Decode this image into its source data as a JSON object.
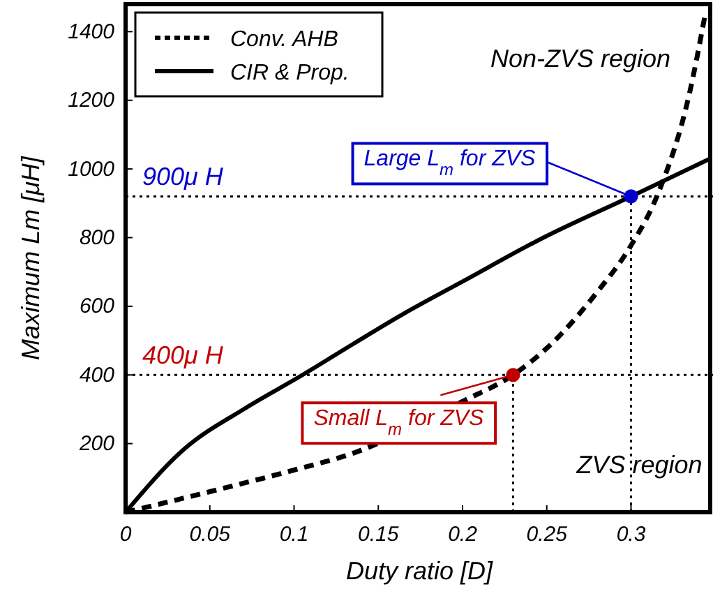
{
  "chart_data": {
    "type": "line",
    "xlabel": "Duty ratio [D]",
    "ylabel": "Maximum Lm [μH]",
    "xlim": [
      0,
      0.347
    ],
    "ylim": [
      0,
      1480
    ],
    "xticks": [
      0,
      0.05,
      0.1,
      0.15,
      0.2,
      0.25,
      0.3
    ],
    "yticks": [
      {
        "value": 0,
        "label": null
      },
      200,
      400,
      600,
      800,
      1000,
      1200,
      1400
    ],
    "grid": false,
    "legend": "top left",
    "series": [
      {
        "name": "Conv. AHB",
        "color": "#000000",
        "line_style": "dashed",
        "x": [
          0,
          0.05,
          0.1,
          0.135,
          0.2,
          0.23,
          0.25,
          0.28,
          0.3,
          0.316,
          0.335,
          0.344
        ],
        "values": [
          0,
          60,
          123,
          172,
          323,
          400,
          478,
          642,
          777,
          928,
          1227,
          1450
        ]
      },
      {
        "name": "CIR & Prop.",
        "color": "#000000",
        "line_style": "solid",
        "x": [
          0,
          0.035,
          0.07,
          0.105,
          0.135,
          0.165,
          0.2,
          0.248,
          0.3,
          0.347
        ],
        "values": [
          0,
          185,
          300,
          400,
          490,
          578,
          672,
          800,
          920,
          1030
        ]
      },
      {
        "type": "scatter",
        "color": "#c00000",
        "marker": "circle",
        "x": [
          0.23
        ],
        "values": [
          400
        ]
      },
      {
        "type": "scatter",
        "color": "#0000cc",
        "marker": "circle",
        "x": [
          0.3
        ],
        "values": [
          920
        ]
      }
    ],
    "ref_lines": [
      {
        "axis": "y",
        "value": 920,
        "label": "900μ H",
        "line_style": "dotted"
      },
      {
        "axis": "y",
        "value": 400,
        "label": "400μ H",
        "line_style": "dotted"
      },
      {
        "axis": "x",
        "value": 0.23,
        "line_style": "dotted"
      },
      {
        "axis": "x",
        "value": 0.3,
        "line_style": "dotted"
      }
    ],
    "annotations": [
      {
        "text": "Large L$_{m}$ for ZVS",
        "x": 0.3,
        "y": 920
      },
      {
        "text": "Small L$_{m}$ for ZVS",
        "x": 0.23,
        "y": 400
      },
      "Non-ZVS region",
      "ZVS region"
    ]
  }
}
